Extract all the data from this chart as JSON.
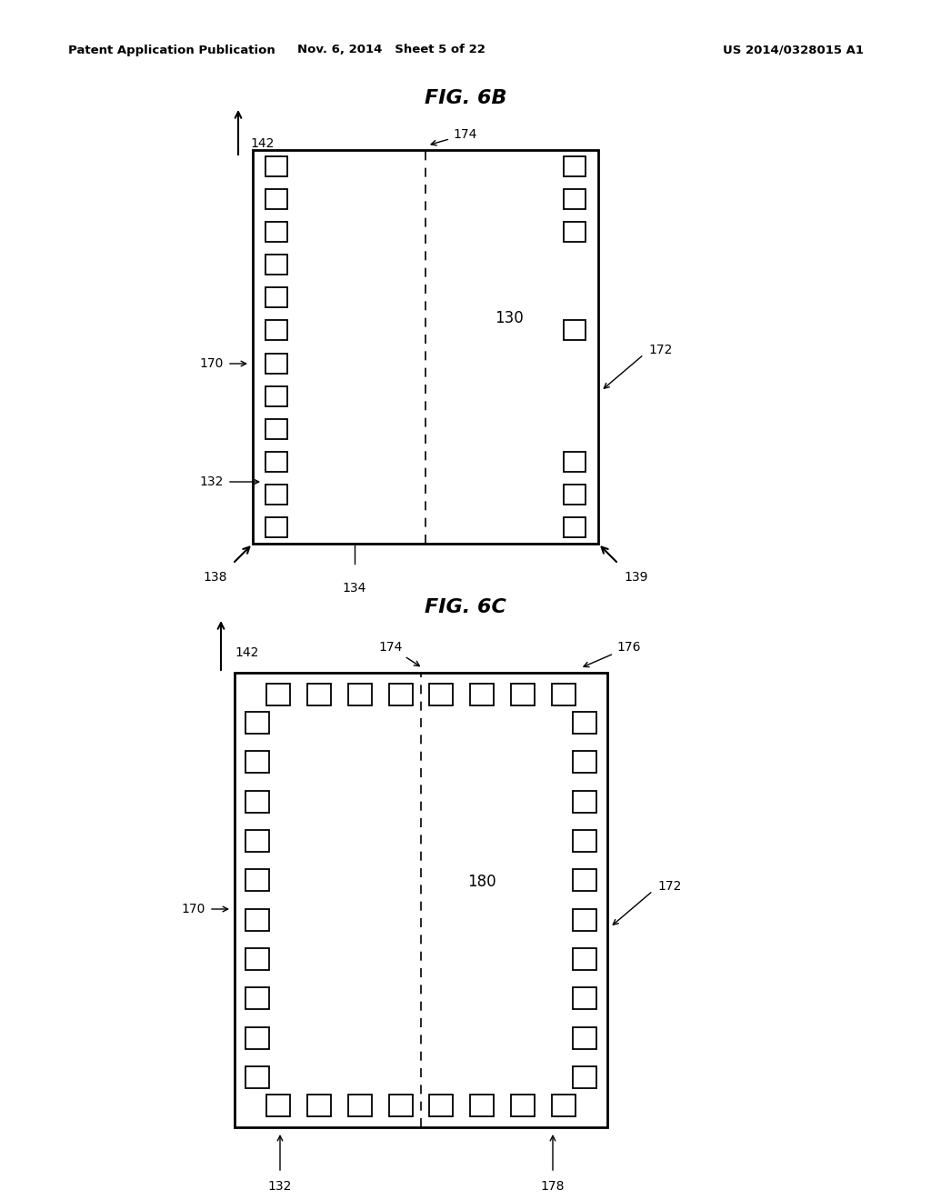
{
  "header_left": "Patent Application Publication",
  "header_mid": "Nov. 6, 2014   Sheet 5 of 22",
  "header_right": "US 2014/0328015 A1",
  "fig6b_title": "FIG. 6B",
  "fig6c_title": "FIG. 6C",
  "bg_color": "#ffffff",
  "line_color": "#000000"
}
